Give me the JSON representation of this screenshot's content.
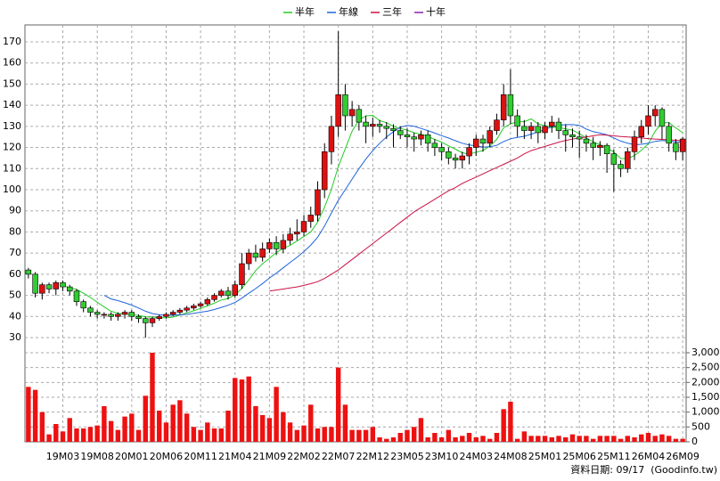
{
  "chart_data": {
    "type": "candlestick",
    "categories": [
      null,
      null,
      null,
      null,
      null,
      "19M03",
      null,
      null,
      null,
      null,
      "19M08",
      null,
      null,
      null,
      null,
      "20M01",
      null,
      null,
      null,
      null,
      "20M06",
      null,
      null,
      null,
      null,
      "20M11",
      null,
      null,
      null,
      null,
      "21M04",
      null,
      null,
      null,
      null,
      "21M09",
      null,
      null,
      null,
      null,
      "22M02",
      null,
      null,
      null,
      null,
      "22M07",
      null,
      null,
      null,
      null,
      "22M12",
      null,
      null,
      null,
      null,
      "23M05",
      null,
      null,
      null,
      null,
      "23M10",
      null,
      null,
      null,
      null,
      "24M03",
      null,
      null,
      null,
      null,
      "24M08",
      null,
      null,
      null,
      null,
      "25M01",
      null,
      null,
      null,
      null,
      "25M06",
      null,
      null,
      null,
      null,
      "25M11",
      null,
      null,
      null,
      null,
      "26M04",
      null,
      null,
      null,
      null,
      "26M09"
    ],
    "open": [
      62,
      60,
      51,
      55,
      53,
      56,
      54,
      52,
      47,
      44,
      42,
      41,
      41,
      40,
      41,
      42,
      40,
      39,
      37,
      39,
      40,
      41,
      42,
      43,
      44,
      45,
      46,
      48,
      50,
      52,
      50,
      55,
      65,
      70,
      68,
      72,
      75,
      72,
      76,
      79,
      80,
      85,
      88,
      100,
      118,
      130,
      145,
      135,
      138,
      132,
      130,
      131,
      130,
      129,
      128,
      126,
      125,
      124,
      126,
      122,
      120,
      118,
      115,
      114,
      116,
      120,
      124,
      122,
      128,
      133,
      145,
      135,
      130,
      128,
      130,
      127,
      130,
      132,
      128,
      126,
      125,
      124,
      122,
      120,
      121,
      117,
      112,
      110,
      118,
      125,
      130,
      135,
      138,
      130,
      122,
      118
    ],
    "high": [
      63,
      61,
      56,
      56,
      57,
      57,
      55,
      53,
      48,
      45,
      43,
      42,
      42,
      42,
      43,
      43,
      41,
      40,
      40,
      41,
      42,
      43,
      44,
      45,
      46,
      47,
      49,
      51,
      53,
      54,
      57,
      70,
      72,
      74,
      75,
      77,
      78,
      79,
      82,
      86,
      88,
      92,
      104,
      122,
      135,
      175,
      150,
      142,
      140,
      135,
      134,
      133,
      132,
      131,
      130,
      129,
      127,
      128,
      128,
      124,
      122,
      120,
      117,
      118,
      122,
      126,
      126,
      130,
      136,
      150,
      157,
      138,
      133,
      132,
      132,
      132,
      135,
      134,
      131,
      129,
      128,
      126,
      125,
      123,
      122,
      119,
      114,
      120,
      128,
      133,
      140,
      140,
      139,
      132,
      124,
      125
    ],
    "low": [
      58,
      49,
      48,
      51,
      50,
      52,
      50,
      45,
      42,
      40,
      39,
      39,
      38,
      38,
      39,
      38,
      37,
      30,
      35,
      38,
      39,
      40,
      41,
      42,
      43,
      44,
      45,
      47,
      49,
      48,
      49,
      53,
      62,
      66,
      66,
      70,
      69,
      70,
      74,
      76,
      78,
      82,
      85,
      96,
      112,
      125,
      128,
      130,
      128,
      122,
      125,
      127,
      124,
      120,
      124,
      120,
      118,
      121,
      118,
      116,
      114,
      112,
      110,
      110,
      112,
      116,
      118,
      120,
      126,
      130,
      131,
      125,
      124,
      124,
      122,
      124,
      127,
      124,
      118,
      120,
      115,
      118,
      114,
      116,
      108,
      99,
      106,
      108,
      114,
      122,
      126,
      130,
      124,
      118,
      114,
      114
    ],
    "close": [
      60,
      51,
      55,
      53,
      56,
      54,
      52,
      47,
      44,
      42,
      41,
      41,
      40,
      41,
      42,
      40,
      39,
      37,
      39,
      40,
      41,
      42,
      43,
      44,
      45,
      46,
      48,
      50,
      52,
      50,
      55,
      65,
      70,
      68,
      72,
      75,
      72,
      76,
      79,
      80,
      85,
      88,
      100,
      118,
      130,
      145,
      135,
      138,
      132,
      130,
      131,
      130,
      129,
      128,
      126,
      125,
      124,
      126,
      122,
      120,
      118,
      115,
      114,
      116,
      120,
      124,
      122,
      128,
      133,
      145,
      135,
      130,
      128,
      130,
      127,
      130,
      132,
      128,
      126,
      125,
      124,
      122,
      120,
      121,
      117,
      112,
      110,
      118,
      125,
      130,
      135,
      138,
      130,
      122,
      118,
      124
    ],
    "up_color": "#dd1111",
    "down_color": "#33cc33",
    "ylim": [
      30,
      178
    ],
    "yticks": [
      30,
      40,
      50,
      60,
      70,
      80,
      90,
      100,
      110,
      120,
      130,
      140,
      150,
      160,
      170
    ],
    "grid": true,
    "volume": {
      "color": "#ee1111",
      "ylim": [
        0,
        3000
      ],
      "yticks": [
        0,
        500,
        {
          "value": 1000,
          "label": "1,000"
        },
        {
          "value": 1500,
          "label": "1,500"
        },
        {
          "value": 2000,
          "label": "2,000"
        },
        {
          "value": 2500,
          "label": "2,500"
        },
        {
          "value": 3000,
          "label": "3,000"
        }
      ],
      "values": [
        1850,
        1750,
        1000,
        250,
        600,
        350,
        800,
        450,
        450,
        500,
        550,
        1200,
        700,
        400,
        850,
        950,
        400,
        1550,
        3000,
        1050,
        650,
        1250,
        1400,
        950,
        500,
        400,
        650,
        450,
        450,
        1050,
        2150,
        2100,
        2200,
        1200,
        900,
        800,
        1850,
        1000,
        650,
        400,
        550,
        1250,
        450,
        500,
        500,
        2500,
        1250,
        400,
        400,
        400,
        500,
        150,
        100,
        150,
        300,
        400,
        500,
        800,
        150,
        300,
        150,
        400,
        150,
        200,
        300,
        150,
        200,
        100,
        300,
        1100,
        1350,
        100,
        350,
        200,
        200,
        200,
        150,
        200,
        150,
        250,
        200,
        200,
        100,
        200,
        200,
        200,
        100,
        200,
        150,
        250,
        300,
        200,
        250,
        200,
        100,
        100
      ]
    },
    "series": [
      {
        "name": "半年",
        "color": "#22cc22",
        "values": [
          null,
          null,
          null,
          null,
          null,
          54.8,
          53.5,
          52.8,
          51,
          49,
          46.7,
          44.5,
          42.5,
          41.5,
          41.2,
          40.8,
          40.5,
          39.8,
          39.7,
          39.5,
          39.3,
          39.7,
          40.7,
          41.7,
          42.7,
          43.8,
          45,
          46.3,
          47.8,
          48.5,
          50.2,
          53.3,
          57.3,
          61.7,
          65,
          67.5,
          70.3,
          72.2,
          73.7,
          75.7,
          77.8,
          80,
          84.7,
          91.7,
          100.2,
          111,
          119.3,
          127.7,
          133,
          135,
          135.2,
          132.7,
          131.7,
          130,
          129,
          128.2,
          127,
          126.3,
          125.2,
          123.8,
          122.5,
          120.8,
          119.2,
          117.5,
          116.8,
          117.8,
          118.5,
          120.7,
          123.8,
          129.3,
          131.2,
          132.2,
          132.2,
          133.5,
          131.2,
          130.3,
          129.5,
          129.5,
          128.8,
          128.2,
          126.5,
          124.5,
          122.7,
          121.3,
          119.8,
          117.8,
          114.8,
          114.7,
          116.2,
          118.7,
          121.7,
          127.7,
          131.7,
          131.7,
          129.3,
          127
        ]
      },
      {
        "name": "年線",
        "color": "#1e64dc",
        "values": [
          null,
          null,
          null,
          null,
          null,
          null,
          null,
          null,
          null,
          null,
          null,
          50,
          48.3,
          47.5,
          46.5,
          45.4,
          44,
          42.5,
          41.4,
          40.8,
          40.6,
          40.6,
          40.8,
          41,
          41.5,
          42,
          42.5,
          43.3,
          44.3,
          45.3,
          46.6,
          48.7,
          51,
          53.2,
          55.6,
          58.2,
          60.5,
          63,
          65.6,
          68,
          70.7,
          73.8,
          77.5,
          82.8,
          89,
          95,
          100,
          105,
          110,
          114.5,
          118.5,
          122,
          125,
          127.5,
          129.5,
          130.5,
          130,
          129,
          128,
          126.8,
          125.6,
          124.5,
          123.2,
          122,
          121.2,
          120.8,
          120.2,
          120.3,
          121,
          122.8,
          124.1,
          124.8,
          125.3,
          126.3,
          127.3,
          128.5,
          129.8,
          130.5,
          130.8,
          130.8,
          130.5,
          128.7,
          127.5,
          126.8,
          126,
          124.5,
          123,
          122,
          121.3,
          121.5,
          122,
          122.9,
          123.3,
          123,
          122.7,
          122.5
        ]
      },
      {
        "name": "三年",
        "color": "#cc1144",
        "values": [
          null,
          null,
          null,
          null,
          null,
          null,
          null,
          null,
          null,
          null,
          null,
          null,
          null,
          null,
          null,
          null,
          null,
          null,
          null,
          null,
          null,
          null,
          null,
          null,
          null,
          null,
          null,
          null,
          null,
          null,
          null,
          null,
          null,
          null,
          null,
          52,
          52.5,
          53,
          53.5,
          54,
          54.7,
          55.5,
          56.5,
          58,
          60,
          62,
          64.5,
          67,
          69.5,
          72,
          74.5,
          77,
          79.5,
          82,
          84.5,
          87,
          89.5,
          91.5,
          93.5,
          95.5,
          97.5,
          99.5,
          101,
          103,
          104.5,
          106,
          107.5,
          109,
          110.5,
          112,
          113.5,
          115,
          117,
          118.5,
          119.5,
          120.5,
          121.5,
          122.5,
          123.3,
          124,
          124.5,
          125,
          125.5,
          126,
          125.8,
          125.5,
          125.2,
          125,
          124.8,
          124.5,
          124.2,
          124,
          123.8,
          123.6,
          123.4,
          123.2
        ]
      },
      {
        "name": "十年",
        "color": "#8822aa",
        "values": [
          null,
          null,
          null,
          null,
          null,
          null,
          null,
          null,
          null,
          null,
          null,
          null,
          null,
          null,
          null,
          null,
          null,
          null,
          null,
          null,
          null,
          null,
          null,
          null,
          null,
          null,
          null,
          null,
          null,
          null,
          null,
          null,
          null,
          null,
          null,
          null,
          null,
          null,
          null,
          null,
          null,
          null,
          null,
          null,
          null,
          null,
          null,
          null,
          null,
          null,
          null,
          null,
          null,
          null,
          null,
          null,
          null,
          null,
          null,
          null,
          null,
          null,
          null,
          null,
          null,
          null,
          null,
          null,
          null,
          null,
          null,
          null,
          null,
          null,
          null,
          null,
          null,
          null,
          null,
          null,
          null,
          null,
          null,
          null,
          null,
          null,
          null,
          null,
          null,
          null,
          null,
          null,
          null,
          null,
          null,
          null
        ]
      }
    ],
    "footer": "資料日期: 09/17  (Goodinfo.tw)"
  }
}
